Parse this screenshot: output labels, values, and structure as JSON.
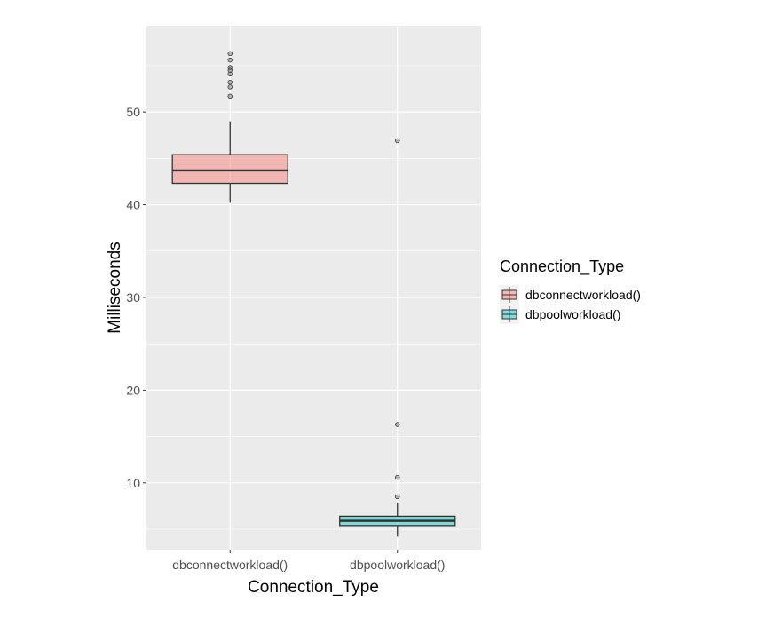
{
  "chart_data": {
    "type": "boxplot",
    "title": "",
    "xlabel": "Connection_Type",
    "ylabel": "Milliseconds",
    "categories": [
      "dbconnectworkload()",
      "dbpoolworkload()"
    ],
    "ylim": [
      2.8,
      59.3
    ],
    "y_ticks": [
      10,
      20,
      30,
      40,
      50
    ],
    "grid": true,
    "legend": {
      "title": "Connection_Type",
      "position": "right",
      "entries": [
        "dbconnectworkload()",
        "dbpoolworkload()"
      ]
    },
    "series": [
      {
        "name": "dbconnectworkload()",
        "color": "#F8766D",
        "whisker_low": 40.2,
        "q1": 42.3,
        "median": 43.7,
        "q3": 45.4,
        "whisker_high": 49.0,
        "outliers": [
          51.7,
          52.7,
          53.2,
          54.1,
          54.5,
          54.8,
          55.6,
          56.3
        ]
      },
      {
        "name": "dbpoolworkload()",
        "color": "#00BFC4",
        "whisker_low": 4.2,
        "q1": 5.4,
        "median": 5.9,
        "q3": 6.4,
        "whisker_high": 7.8,
        "outliers": [
          8.5,
          10.6,
          16.3,
          46.9
        ]
      }
    ]
  }
}
